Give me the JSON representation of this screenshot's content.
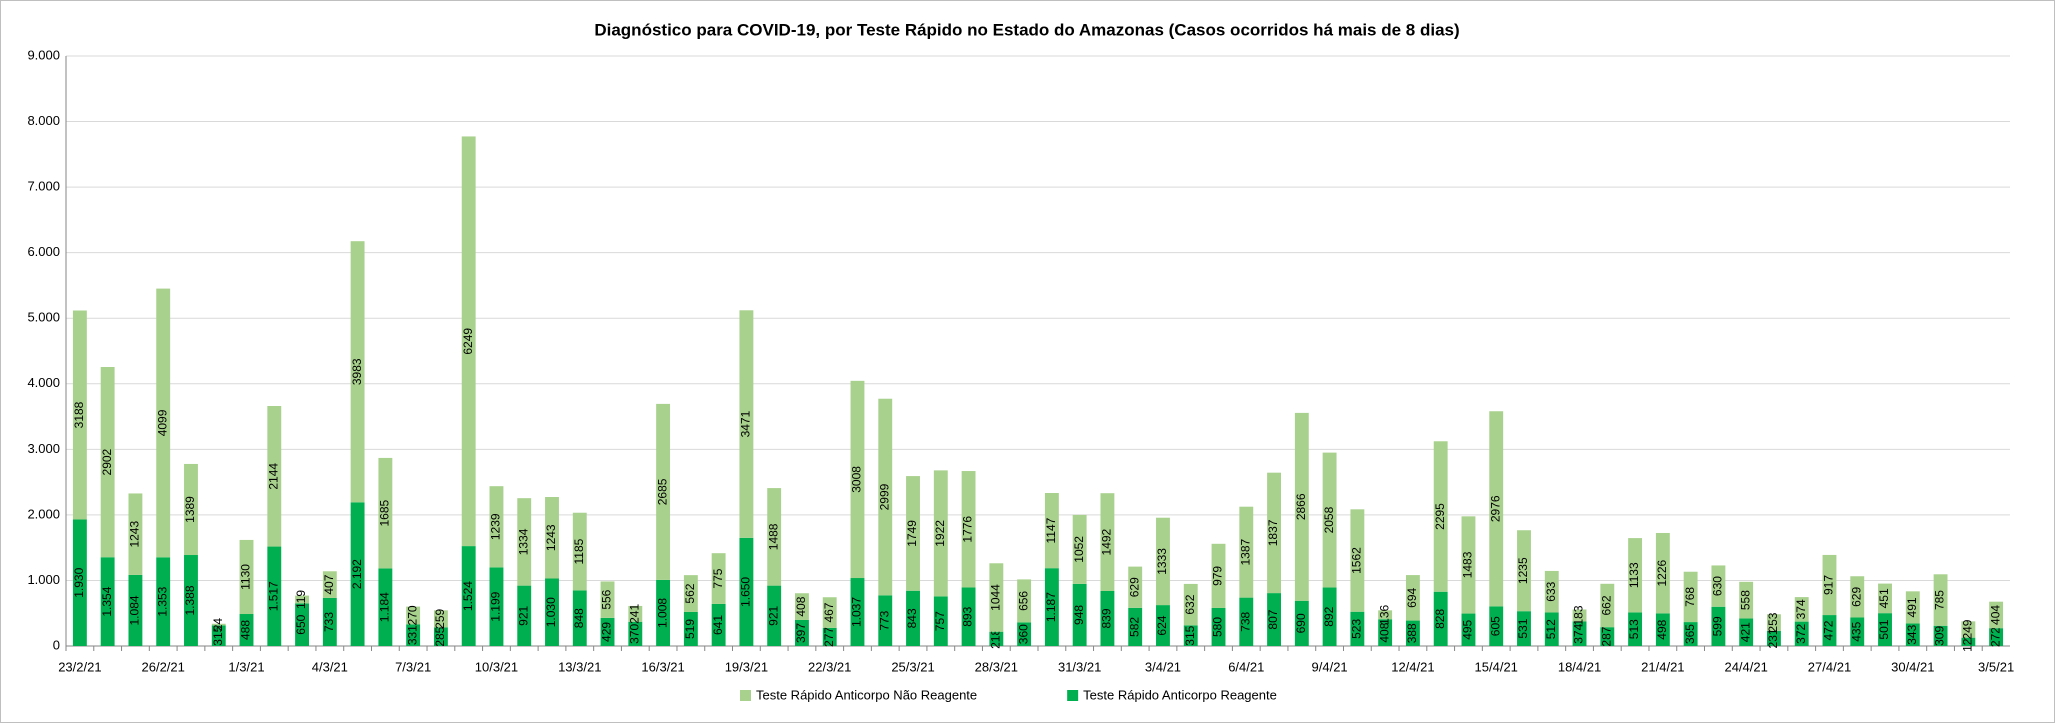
{
  "chart_data": {
    "type": "stacked_bar",
    "title": "Diagnóstico para COVID-19, por  Teste Rápido no Estado do Amazonas (Casos ocorridos há mais de 8 dias)",
    "categories": [
      "23/2/21",
      null,
      null,
      "26/2/21",
      null,
      null,
      "1/3/21",
      null,
      null,
      "4/3/21",
      null,
      null,
      "7/3/21",
      null,
      null,
      "10/3/21",
      null,
      null,
      "13/3/21",
      null,
      null,
      "16/3/21",
      null,
      null,
      "19/3/21",
      null,
      null,
      "22/3/21",
      null,
      null,
      "25/3/21",
      null,
      null,
      "28/3/21",
      null,
      null,
      "31/3/21",
      null,
      null,
      "3/4/21",
      null,
      null,
      "6/4/21",
      null,
      null,
      "9/4/21",
      null,
      null,
      "12/4/21",
      null,
      null,
      "15/4/21",
      null,
      null,
      "18/4/21",
      null,
      null,
      "21/4/21",
      null,
      null,
      "24/4/21",
      null,
      null,
      "27/4/21",
      null,
      null,
      "30/4/21",
      null,
      null,
      "3/5/21"
    ],
    "series": [
      {
        "name": "Teste Rápido Anticorpo Reagente",
        "color": "#00b050",
        "values": [
          1930,
          1354,
          1084,
          1353,
          1388,
          315,
          488,
          1517,
          650,
          733,
          2192,
          1184,
          331,
          285,
          1524,
          1199,
          921,
          1030,
          848,
          429,
          370,
          1008,
          519,
          641,
          1650,
          921,
          397,
          277,
          1037,
          773,
          843,
          757,
          893,
          218,
          360,
          1187,
          948,
          839,
          582,
          624,
          315,
          580,
          738,
          807,
          690,
          892,
          523,
          408,
          388,
          828,
          495,
          605,
          531,
          512,
          374,
          287,
          513,
          498,
          365,
          599,
          421,
          231,
          372,
          472,
          435,
          501,
          343,
          309,
          127,
          272
        ],
        "value_labels": [
          "1.930",
          "1.354",
          "1.084",
          "1.353",
          "1.388",
          "315",
          "488",
          "1.517",
          "650",
          "733",
          "2.192",
          "1.184",
          "331",
          "285",
          "1.524",
          "1.199",
          "921",
          "1.030",
          "848",
          "429",
          "370",
          "1.008",
          "519",
          "641",
          "1.650",
          "921",
          "397",
          "277",
          "1.037",
          "773",
          "843",
          "757",
          "893",
          "218",
          "360",
          "1.187",
          "948",
          "839",
          "582",
          "624",
          "315",
          "580",
          "738",
          "807",
          "690",
          "892",
          "523",
          "408",
          "388",
          "828",
          "495",
          "605",
          "531",
          "512",
          "374",
          "287",
          "513",
          "498",
          "365",
          "599",
          "421",
          "231",
          "372",
          "472",
          "435",
          "501",
          "343",
          "309",
          "127",
          "272"
        ]
      },
      {
        "name": "Teste Rápido Anticorpo Não Reagente",
        "color": "#a9d18e",
        "values": [
          3188,
          2902,
          1243,
          4099,
          1389,
          24,
          1130,
          2144,
          119,
          407,
          3983,
          1685,
          270,
          259,
          6249,
          1239,
          1334,
          1243,
          1185,
          556,
          241,
          2685,
          562,
          775,
          3471,
          1488,
          408,
          467,
          3008,
          2999,
          1749,
          1922,
          1776,
          1044,
          656,
          1147,
          1052,
          1492,
          629,
          1333,
          632,
          979,
          1387,
          1837,
          2866,
          2058,
          1562,
          136,
          694,
          2295,
          1483,
          2976,
          1235,
          633,
          183,
          662,
          1133,
          1226,
          768,
          630,
          558,
          253,
          374,
          917,
          629,
          451,
          491,
          785,
          249,
          404
        ]
      }
    ],
    "ylim": [
      0,
      9000
    ],
    "yticks": [
      0,
      {
        "value": 1000,
        "label": "1.000"
      },
      {
        "value": 2000,
        "label": "2.000"
      },
      {
        "value": 3000,
        "label": "3.000"
      },
      {
        "value": 4000,
        "label": "4.000"
      },
      {
        "value": 5000,
        "label": "5.000"
      },
      {
        "value": 6000,
        "label": "6.000"
      },
      {
        "value": 7000,
        "label": "7.000"
      },
      {
        "value": 8000,
        "label": "8.000"
      },
      {
        "value": 9000,
        "label": "9.000"
      }
    ],
    "grid": true,
    "legend": "bottom"
  }
}
